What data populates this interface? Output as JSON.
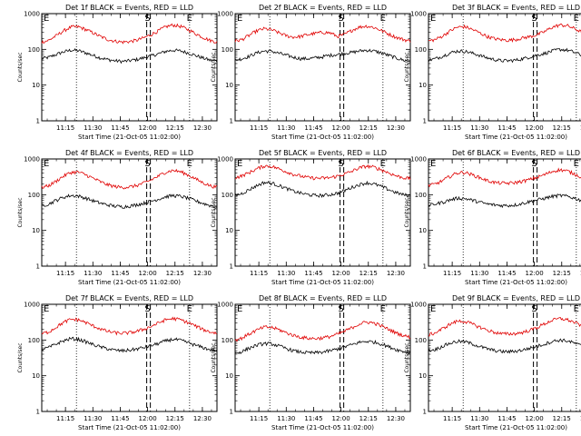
{
  "panel_titles": [
    "Det 1f BLACK = Events, RED = LLD",
    "Det 2f BLACK = Events, RED = LLD",
    "Det 3f BLACK = Events, RED = LLD",
    "Det 4f BLACK = Events, RED = LLD",
    "Det 5f BLACK = Events, RED = LLD",
    "Det 6f BLACK = Events, RED = LLD",
    "Det 7f BLACK = Events, RED = LLD",
    "Det 8f BLACK = Events, RED = LLD",
    "Det 9f BLACK = Events, RED = LLD"
  ],
  "xlabel": "Start Time (21-Oct-05 11:02:00)",
  "ylabel": "Counts/sec",
  "x_tick_labels": [
    "11:15",
    "11:30",
    "11:45",
    "12:00",
    "12:15",
    "12:30"
  ],
  "y_tick_labels": [
    "1",
    "10",
    "100",
    "1000"
  ],
  "marker_letters": {
    "left": "E",
    "mid": "S",
    "right": "E"
  },
  "colors": {
    "events": "#000000",
    "lld": "#e00000",
    "axes": "#000000",
    "background": "#ffffff"
  },
  "chart_data": {
    "type": "line",
    "layout": "3x3 grid",
    "xlabel": "Start Time (21-Oct-05 11:02:00)",
    "ylabel": "Counts/sec",
    "x_unit": "minutes after 11:02:00",
    "xlim": [
      0,
      96
    ],
    "ylim": [
      1,
      1000
    ],
    "y_scale": "log",
    "x_ticks_minutes": [
      13,
      28,
      43,
      58,
      73,
      88
    ],
    "dotted_markers_minutes": [
      19,
      81
    ],
    "dashed_markers_minutes": [
      57.5,
      59.5
    ],
    "x": [
      0,
      4,
      8,
      12,
      16,
      20,
      24,
      28,
      32,
      36,
      40,
      44,
      48,
      52,
      56,
      60,
      64,
      68,
      72,
      76,
      80,
      84,
      88,
      92,
      96
    ],
    "panels": [
      {
        "title": "Det 1f BLACK = Events, RED = LLD",
        "series": [
          {
            "values": [
              55,
              60,
              72,
              85,
              95,
              92,
              80,
              68,
              58,
              52,
              48,
              46,
              48,
              52,
              58,
              66,
              75,
              88,
              95,
              90,
              80,
              68,
              58,
              50,
              46
            ]
          },
          {
            "values": [
              160,
              180,
              240,
              330,
              420,
              430,
              360,
              290,
              230,
              190,
              170,
              160,
              165,
              180,
              210,
              260,
              330,
              430,
              480,
              440,
              360,
              280,
              220,
              180,
              160
            ]
          }
        ]
      },
      {
        "title": "Det 2f BLACK = Events, RED = LLD",
        "series": [
          {
            "values": [
              50,
              55,
              65,
              80,
              90,
              88,
              78,
              68,
              60,
              55,
              55,
              58,
              62,
              68,
              72,
              78,
              82,
              90,
              95,
              90,
              80,
              68,
              58,
              50,
              46
            ]
          },
          {
            "values": [
              170,
              190,
              250,
              330,
              380,
              350,
              290,
              240,
              220,
              230,
              260,
              280,
              300,
              290,
              230,
              260,
              340,
              420,
              450,
              410,
              340,
              270,
              220,
              190,
              170
            ]
          }
        ]
      },
      {
        "title": "Det 3f BLACK = Events, RED = LLD",
        "series": [
          {
            "values": [
              50,
              55,
              65,
              80,
              90,
              88,
              78,
              68,
              58,
              52,
              48,
              48,
              50,
              55,
              62,
              70,
              78,
              90,
              100,
              95,
              82,
              68,
              58,
              50,
              46
            ]
          },
          {
            "values": [
              170,
              190,
              240,
              330,
              420,
              430,
              360,
              290,
              230,
              200,
              185,
              180,
              190,
              210,
              230,
              260,
              320,
              420,
              480,
              460,
              380,
              300,
              240,
              200,
              180
            ]
          }
        ]
      },
      {
        "title": "Det 4f BLACK = Events, RED = LLD",
        "series": [
          {
            "values": [
              50,
              55,
              70,
              85,
              95,
              92,
              80,
              68,
              58,
              52,
              48,
              46,
              48,
              52,
              58,
              66,
              75,
              88,
              95,
              90,
              80,
              68,
              58,
              50,
              46
            ]
          },
          {
            "values": [
              160,
              180,
              240,
              330,
              420,
              430,
              360,
              290,
              230,
              190,
              170,
              160,
              165,
              180,
              210,
              260,
              330,
              430,
              480,
              440,
              360,
              280,
              220,
              180,
              160
            ]
          }
        ]
      },
      {
        "title": "Det 5f BLACK = Events, RED = LLD",
        "series": [
          {
            "values": [
              95,
              110,
              140,
              180,
              220,
              210,
              180,
              150,
              125,
              110,
              100,
              95,
              95,
              100,
              110,
              130,
              160,
              190,
              215,
              200,
              170,
              140,
              115,
              100,
              92
            ]
          },
          {
            "values": [
              300,
              340,
              420,
              530,
              640,
              620,
              530,
              440,
              370,
              330,
              300,
              290,
              290,
              300,
              330,
              380,
              450,
              560,
              630,
              590,
              500,
              410,
              340,
              300,
              280
            ]
          }
        ]
      },
      {
        "title": "Det 6f BLACK = Events, RED = LLD",
        "series": [
          {
            "values": [
              50,
              55,
              62,
              72,
              80,
              78,
              70,
              62,
              55,
              52,
              50,
              50,
              52,
              58,
              65,
              72,
              80,
              90,
              95,
              90,
              80,
              68,
              58,
              50,
              46
            ]
          },
          {
            "values": [
              180,
              200,
              250,
              330,
              410,
              420,
              360,
              300,
              250,
              220,
              210,
              210,
              220,
              240,
              270,
              310,
              370,
              450,
              500,
              460,
              380,
              300,
              240,
              200,
              180
            ]
          }
        ]
      },
      {
        "title": "Det 7f BLACK = Events, RED = LLD",
        "series": [
          {
            "values": [
              55,
              62,
              78,
              95,
              110,
              105,
              90,
              75,
              64,
              57,
              52,
              50,
              52,
              56,
              62,
              70,
              80,
              95,
              105,
              98,
              85,
              72,
              62,
              54,
              50
            ]
          },
          {
            "values": [
              150,
              170,
              230,
              310,
              380,
              370,
              310,
              250,
              205,
              175,
              160,
              155,
              160,
              175,
              200,
              240,
              300,
              370,
              400,
              370,
              310,
              250,
              200,
              170,
              155
            ]
          }
        ]
      },
      {
        "title": "Det 8f BLACK = Events, RED = LLD",
        "series": [
          {
            "values": [
              42,
              48,
              60,
              72,
              80,
              78,
              68,
              58,
              50,
              46,
              44,
              44,
              46,
              50,
              56,
              64,
              74,
              86,
              92,
              88,
              78,
              65,
              55,
              48,
              44
            ]
          },
          {
            "values": [
              100,
              115,
              150,
              190,
              230,
              225,
              195,
              160,
              135,
              120,
              112,
              110,
              115,
              125,
              145,
              175,
              220,
              280,
              320,
              300,
              250,
              200,
              160,
              135,
              120
            ]
          }
        ]
      },
      {
        "title": "Det 9f BLACK = Events, RED = LLD",
        "series": [
          {
            "values": [
              50,
              55,
              68,
              82,
              92,
              90,
              78,
              66,
              57,
              51,
              48,
              47,
              49,
              53,
              60,
              68,
              78,
              92,
              100,
              95,
              82,
              68,
              58,
              50,
              46
            ]
          },
          {
            "values": [
              140,
              160,
              210,
              280,
              340,
              330,
              280,
              230,
              190,
              165,
              150,
              148,
              152,
              165,
              190,
              230,
              290,
              360,
              400,
              370,
              310,
              250,
              200,
              165,
              150
            ]
          }
        ]
      }
    ]
  }
}
